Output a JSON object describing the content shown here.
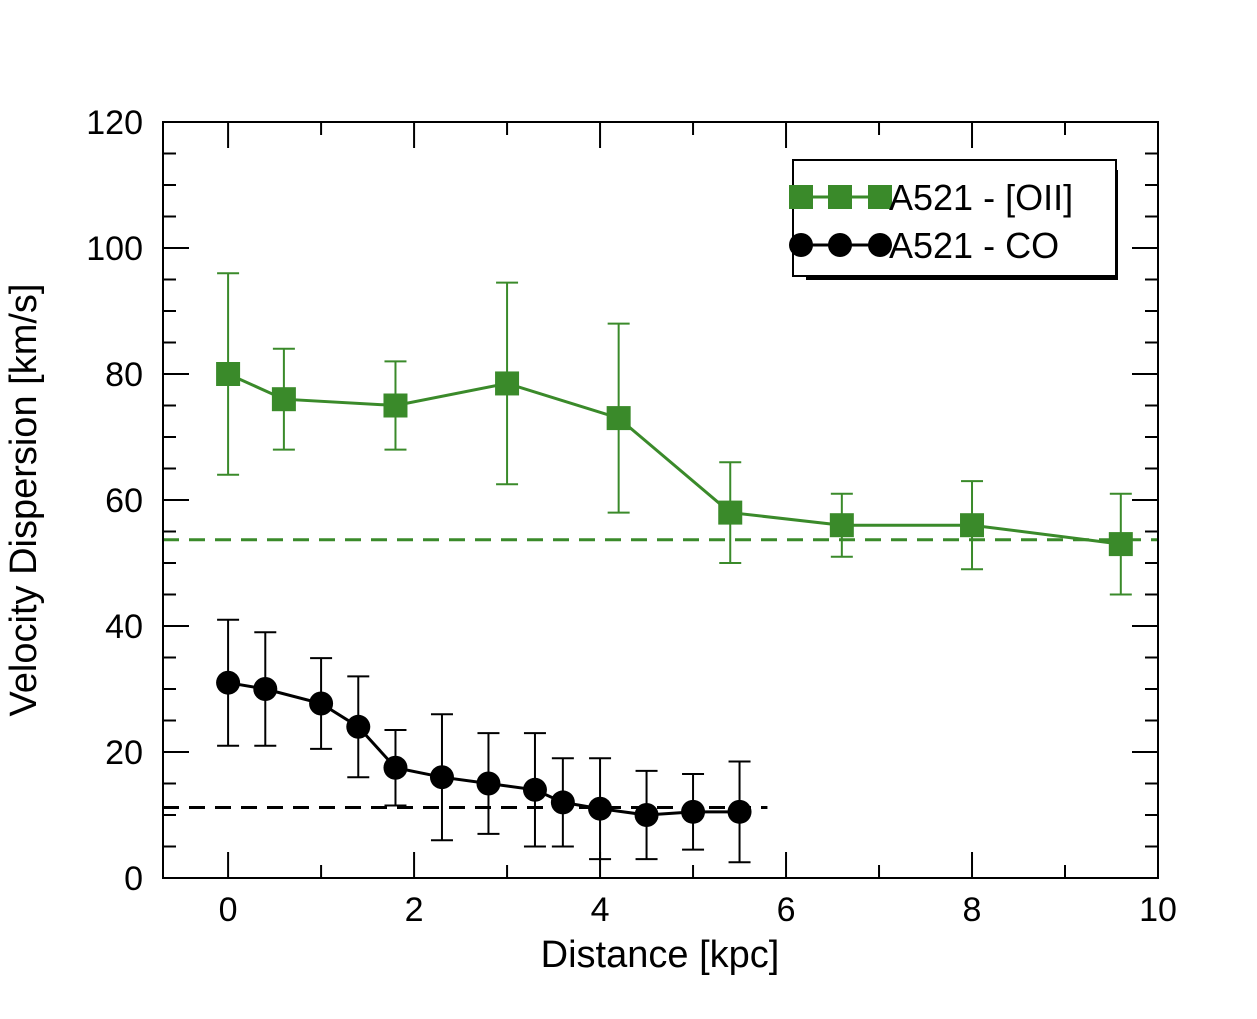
{
  "chart_data": {
    "type": "line",
    "title": "",
    "xlabel": "Distance [kpc]",
    "ylabel": "Velocity Dispersion [km/s]",
    "xlim": [
      -0.7,
      10
    ],
    "ylim": [
      0,
      120
    ],
    "xticks": [
      0,
      2,
      4,
      6,
      8,
      10
    ],
    "yticks": [
      0,
      20,
      40,
      60,
      80,
      100,
      120
    ],
    "xtick_labels": [
      "0",
      "2",
      "4",
      "6",
      "8",
      "10"
    ],
    "ytick_labels": [
      "0",
      "20",
      "40",
      "60",
      "80",
      "100",
      "120"
    ],
    "grid": false,
    "legend_position": "top-right",
    "series": [
      {
        "name": "A521 - [OII]",
        "color": "#3a8a2a",
        "marker": "square",
        "x": [
          0,
          0.6,
          1.8,
          3.0,
          4.2,
          5.4,
          6.6,
          8.0,
          9.6
        ],
        "y": [
          80,
          76,
          75,
          78.5,
          73,
          58,
          56,
          56,
          53
        ],
        "err_low": [
          16,
          8,
          7,
          16,
          15,
          8,
          5,
          7,
          8
        ],
        "err_high": [
          16,
          8,
          7,
          16,
          15,
          8,
          5,
          7,
          8
        ],
        "reference_line": 53.7
      },
      {
        "name": "A521 - CO",
        "color": "#000000",
        "marker": "circle",
        "x": [
          0,
          0.4,
          1.0,
          1.4,
          1.8,
          2.3,
          2.8,
          3.3,
          3.6,
          4.0,
          4.5,
          5.0,
          5.5
        ],
        "y": [
          31,
          30,
          27.7,
          24,
          17.5,
          16,
          15,
          14,
          12,
          11,
          10,
          10.5,
          10.5
        ],
        "err_low": [
          10,
          9,
          7.2,
          8,
          6,
          10,
          8,
          9,
          7,
          8,
          7,
          6,
          8
        ],
        "err_high": [
          10,
          9,
          7.2,
          8,
          6,
          10,
          8,
          9,
          7,
          8,
          7,
          6,
          8
        ],
        "reference_line": 11.2,
        "reference_line_xmax": 5.8
      }
    ]
  }
}
